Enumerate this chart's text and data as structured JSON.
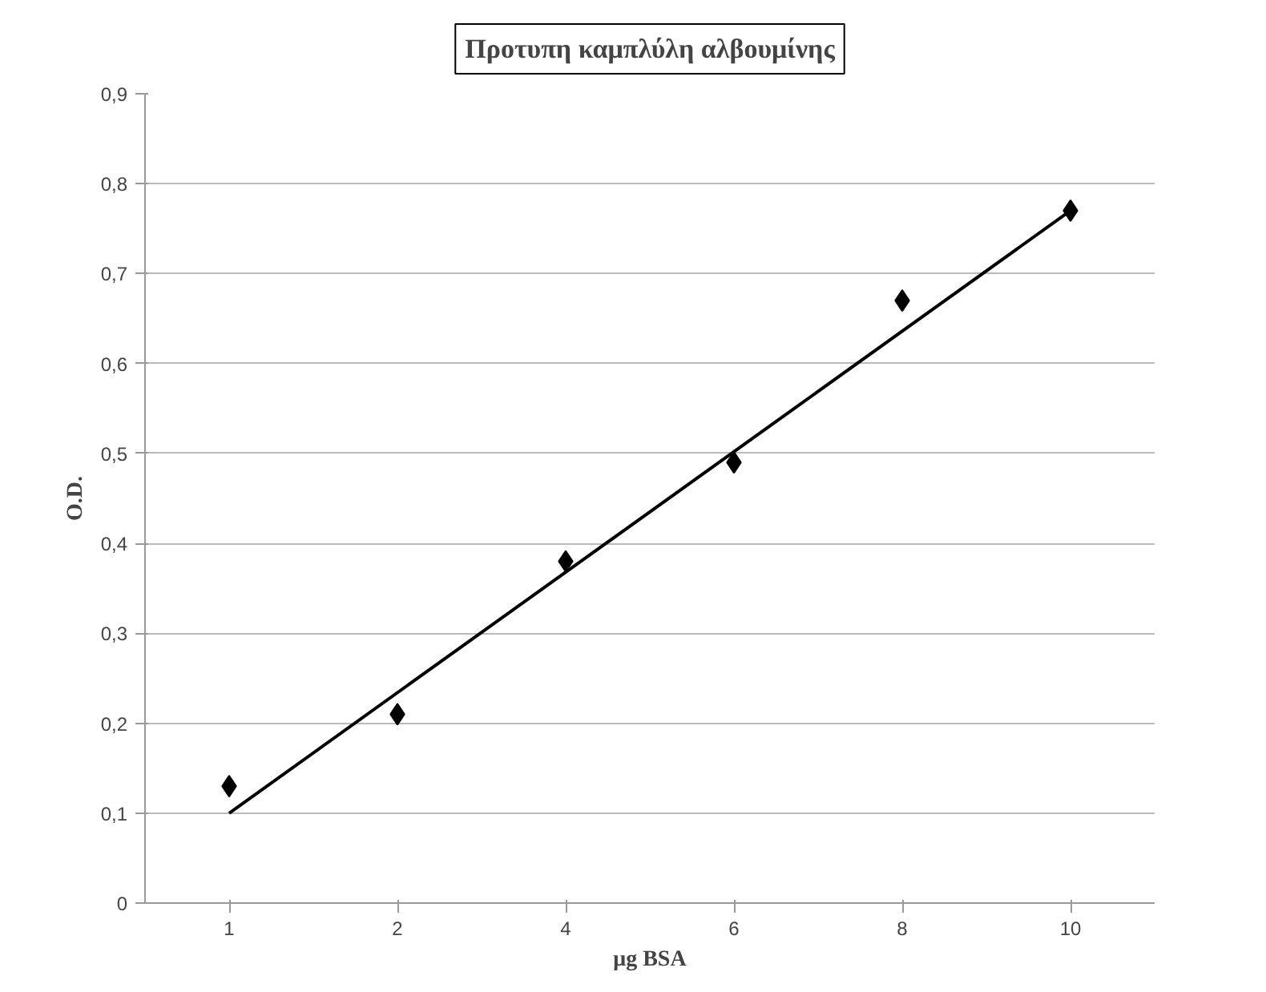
{
  "chart_data": {
    "type": "scatter",
    "title": "Προτυπη καμπλύλη αλβουμίνης",
    "xlabel": "μg BSA",
    "ylabel": "O.D.",
    "categories": [
      "1",
      "2",
      "4",
      "6",
      "8",
      "10"
    ],
    "series": [
      {
        "color": "#000000",
        "marker": "diamond",
        "values": [
          0.13,
          0.21,
          0.38,
          0.49,
          0.67,
          0.77
        ]
      },
      {
        "type": "line",
        "color": "#000000",
        "marker": "none",
        "x": [
          "1",
          "10"
        ],
        "values": [
          0.1,
          0.77
        ]
      }
    ],
    "ylim": [
      0,
      0.9
    ],
    "yticks": [
      0,
      {
        "value": 0.1,
        "label": "0,1"
      },
      {
        "value": 0.2,
        "label": "0,2"
      },
      {
        "value": 0.3,
        "label": "0,3"
      },
      {
        "value": 0.4,
        "label": "0,4"
      },
      {
        "value": 0.5,
        "label": "0,5"
      },
      {
        "value": 0.6,
        "label": "0,6"
      },
      {
        "value": 0.7,
        "label": "0,7"
      },
      {
        "value": 0.8,
        "label": "0,8"
      },
      {
        "value": 0.9,
        "label": "0,9"
      }
    ],
    "grid": "y",
    "line_style": "solid"
  }
}
